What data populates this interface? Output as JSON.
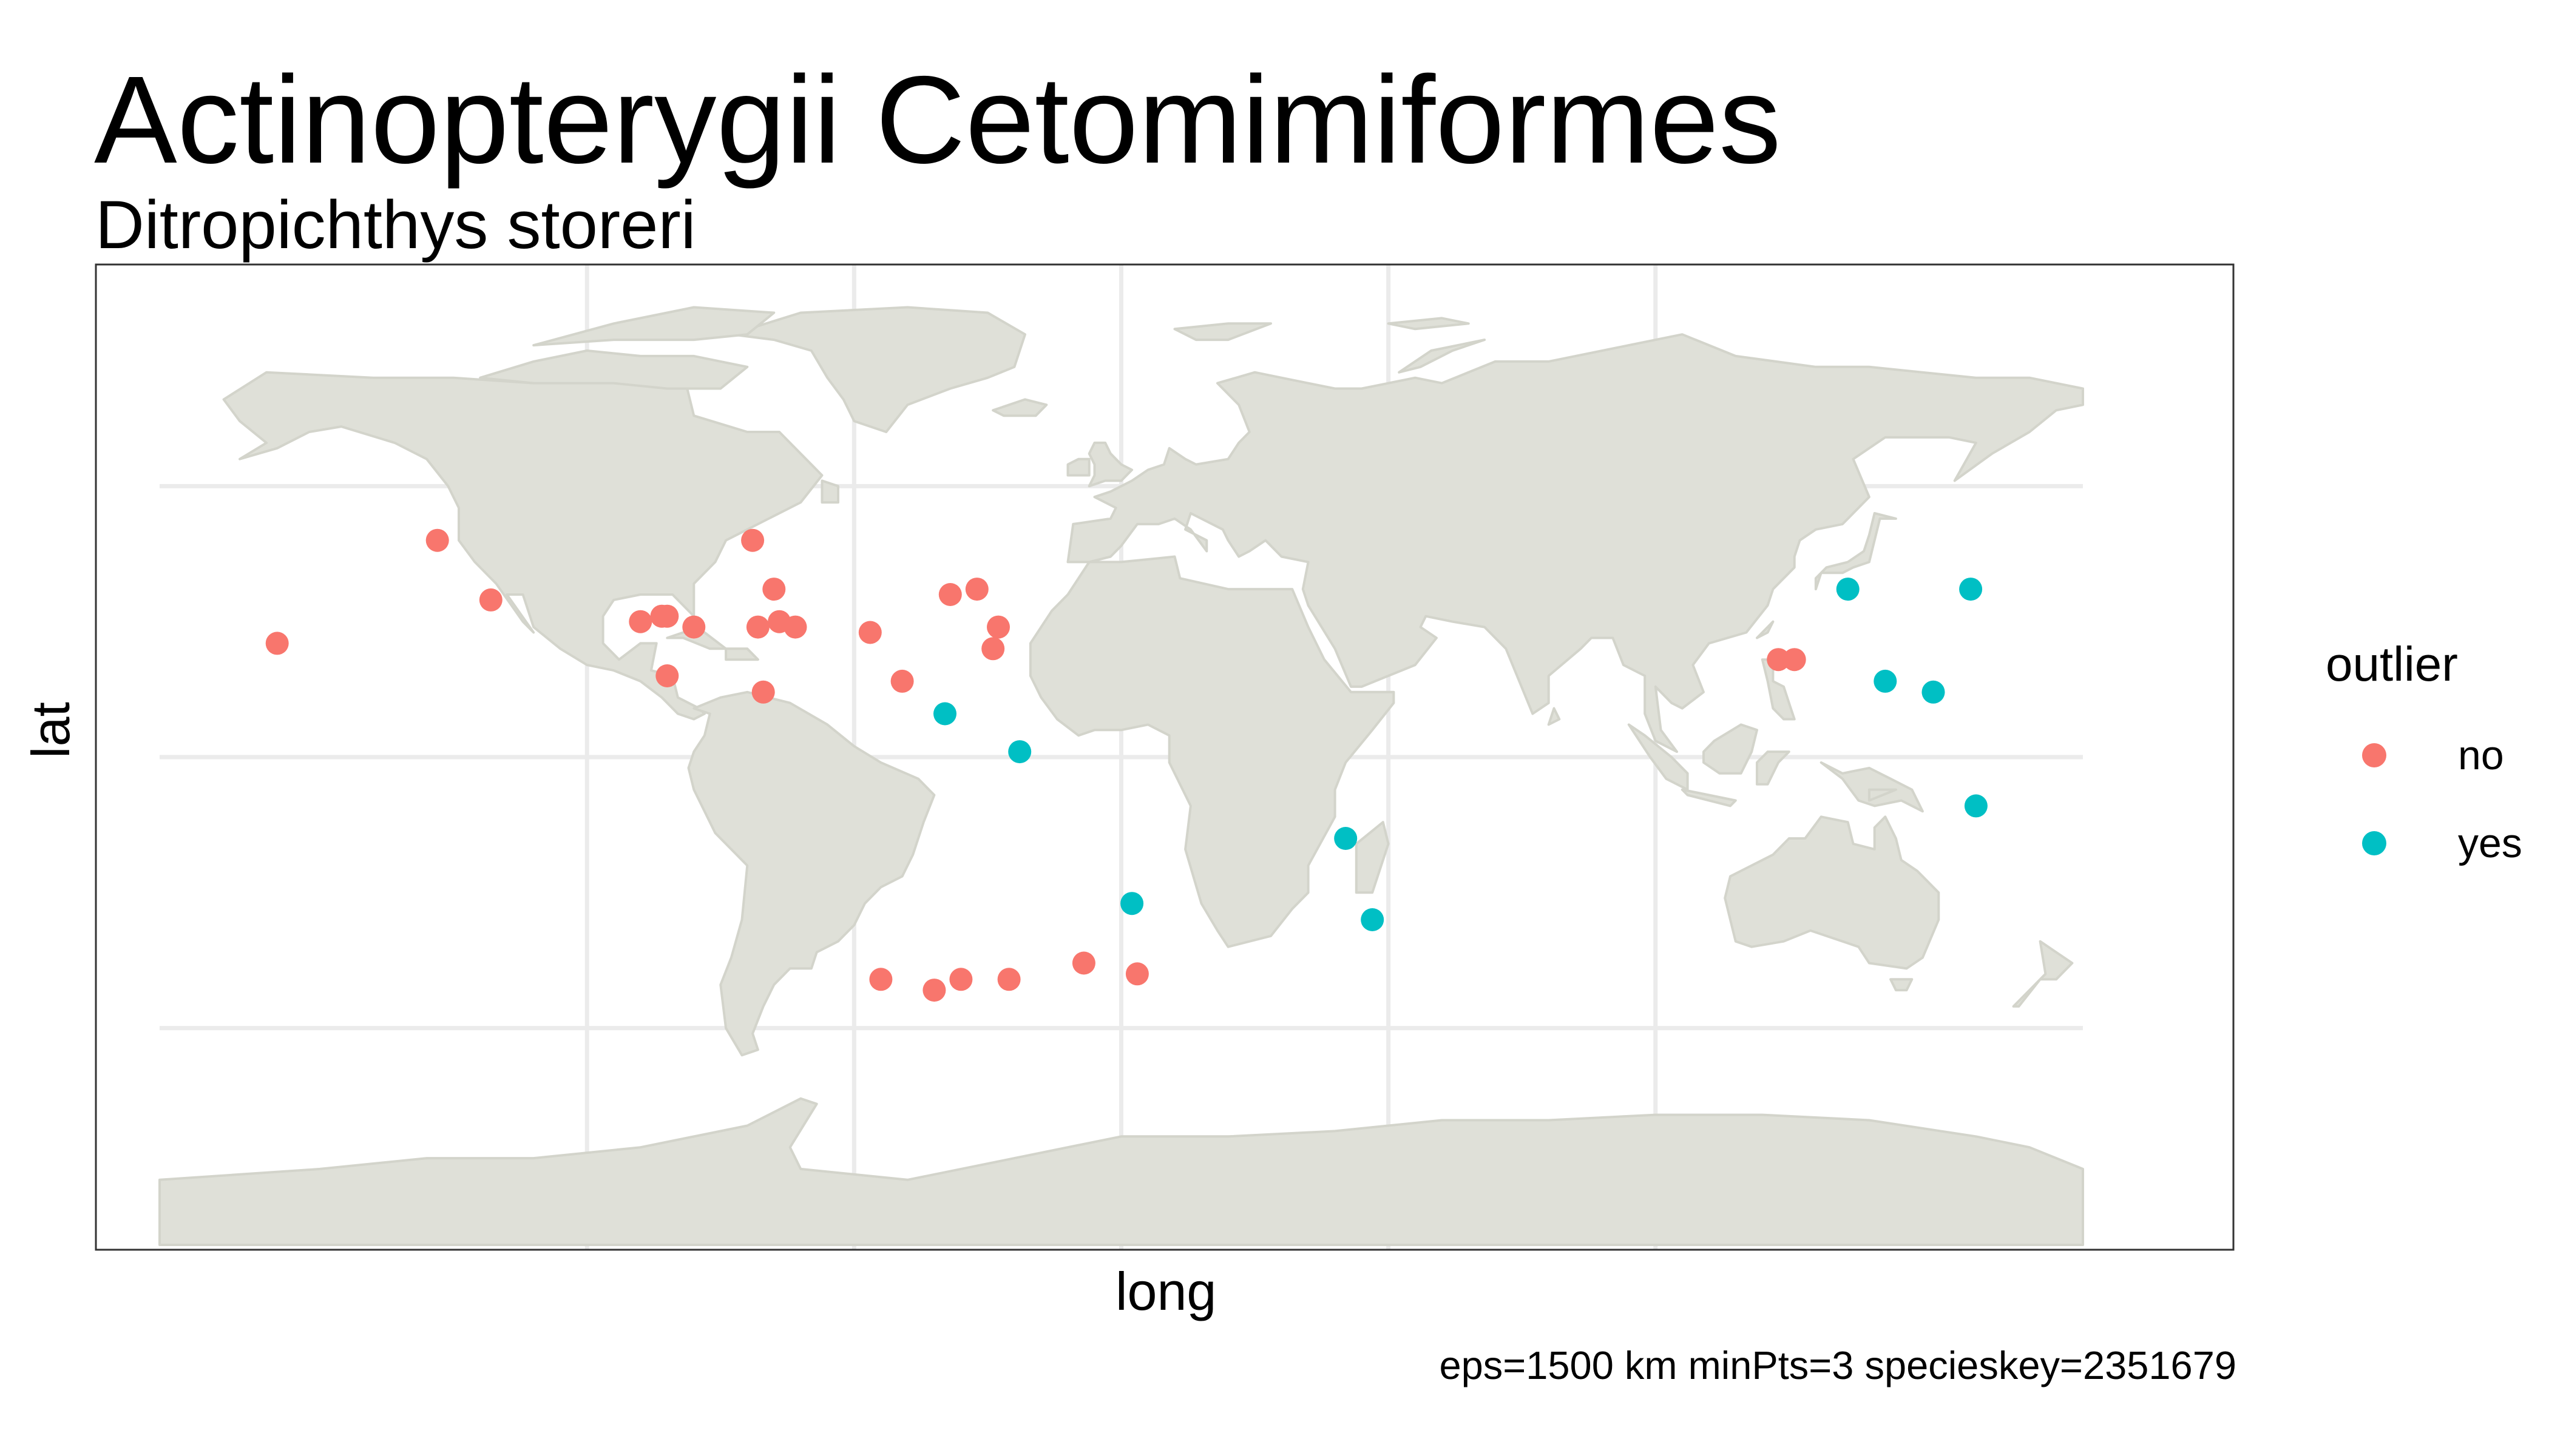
{
  "chart_data": {
    "type": "scatter",
    "title": "Actinopterygii Cetomimiformes",
    "subtitle": "Ditropichthys storeri",
    "xlabel": "long",
    "ylabel": "lat",
    "caption": "eps=1500 km minPts=3 specieskey=2351679",
    "xlim": [
      -180,
      180
    ],
    "ylim": [
      -90,
      90
    ],
    "grid": true,
    "basemap": "world countries",
    "legend": {
      "title": "outlier",
      "position": "right",
      "entries": [
        "no",
        "yes"
      ]
    },
    "colors": {
      "no": "#F8766D",
      "yes": "#00BFC4",
      "land": "#DFE0D8",
      "grid": "#EBEBEB"
    },
    "series": [
      {
        "name": "no",
        "points": [
          [
            -158,
            21
          ],
          [
            -128,
            40
          ],
          [
            -118,
            29
          ],
          [
            -90,
            25
          ],
          [
            -86,
            26
          ],
          [
            -85,
            26
          ],
          [
            -85,
            15
          ],
          [
            -80,
            24
          ],
          [
            -69,
            40
          ],
          [
            -68,
            24
          ],
          [
            -67,
            12
          ],
          [
            -65,
            31
          ],
          [
            -64,
            25
          ],
          [
            -61,
            24
          ],
          [
            -47,
            23
          ],
          [
            -41,
            14
          ],
          [
            -32,
            30
          ],
          [
            -27,
            31
          ],
          [
            -23,
            24
          ],
          [
            -24,
            20
          ],
          [
            -45,
            -41
          ],
          [
            -35,
            -43
          ],
          [
            -30,
            -41
          ],
          [
            -21,
            -41
          ],
          [
            -7,
            -38
          ],
          [
            3,
            -40
          ],
          [
            123,
            18
          ],
          [
            126,
            18
          ]
        ]
      },
      {
        "name": "yes",
        "points": [
          [
            -33,
            8
          ],
          [
            -19,
            1
          ],
          [
            2,
            -27
          ],
          [
            42,
            -15
          ],
          [
            47,
            -30
          ],
          [
            136,
            31
          ],
          [
            159,
            31
          ],
          [
            143,
            14
          ],
          [
            152,
            12
          ],
          [
            160,
            -9
          ]
        ]
      }
    ]
  }
}
